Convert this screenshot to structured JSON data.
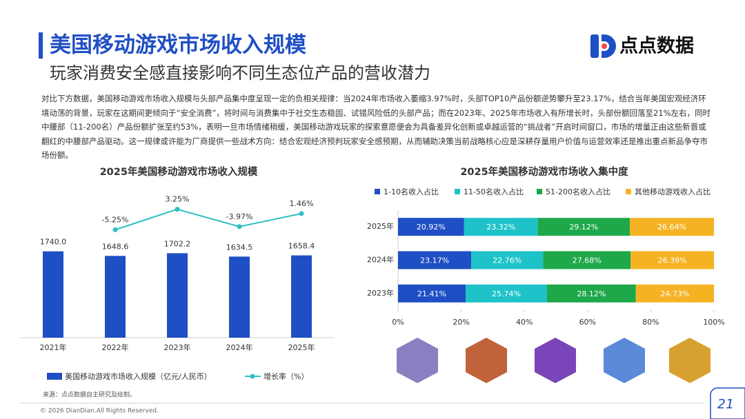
{
  "header": {
    "title": "美国移动游戏市场收入规模",
    "subtitle": "玩家消费安全感直接影响不同生态位产品的营收潜力",
    "logo": "点点数据"
  },
  "paragraph": "对比下方数据，美国移动游戏市场收入规模与头部产品集中度呈现一定的负相关规律：当2024年市场收入萎缩3.97%时，头部TOP10产品份额逆势攀升至23.17%，结合当年美国宏观经济环境动荡的背景，玩家在这期间更倾向于“安全消费”，将时间与消费集中于社交生态稳固、试错风险低的头部产品；而在2023年、2025年市场收入有所增长时，头部份额回落至21%左右，同时中腰部（11-200名）产品份额扩张至约53%，表明一旦市场情绪稍缓，美国移动游戏玩家的探索意愿便会为具备差异化创新或卓越运营的“挑战者”开启时间窗口，市场的增量正由这些新晋或翻红的中腰部产品驱动。这一规律或许能为厂商提供一些战术方向：结合宏观经济预判玩家安全感预期，从而辅助决策当前战略核心应是深耕存量用户价值与运营效率还是推出重点新品争夺市场份额。",
  "chart_data": [
    {
      "type": "bar-line",
      "title": "2025年美国移动游戏市场收入规模",
      "categories": [
        "2021年",
        "2022年",
        "2023年",
        "2024年",
        "2025年"
      ],
      "ylim": [
        0,
        2000
      ],
      "y2lim": [
        -20,
        10
      ],
      "series": [
        {
          "name": "美国移动游戏市场收入规模（亿元/人民币）",
          "color": "#1f4fc4",
          "values": [
            1740,
            1648.6,
            1702.2,
            1634.5,
            1658.4
          ],
          "value_labels": [
            "1740.0",
            "1648.6",
            "1702.2",
            "1634.5",
            "1658.4"
          ]
        },
        {
          "name": "增长率（%）",
          "color": "#2cc0c4",
          "axis": "y2",
          "values": [
            null,
            -5.25,
            3.25,
            -3.97,
            1.46
          ],
          "value_labels": [
            null,
            "-5.25%",
            "3.25%",
            "-3.97%",
            "1.46%"
          ]
        }
      ]
    },
    {
      "type": "stacked-hbar",
      "title": "2025年美国移动游戏市场收入集中度",
      "categories": [
        "2025年",
        "2024年",
        "2023年"
      ],
      "xlim": [
        0,
        100
      ],
      "xticks": [
        {
          "value": 0,
          "label": "0%"
        },
        {
          "value": 20,
          "label": "20%"
        },
        {
          "value": 40,
          "label": "40%"
        },
        {
          "value": 60,
          "label": "60%"
        },
        {
          "value": 80,
          "label": "80%"
        },
        {
          "value": 100,
          "label": "100%"
        }
      ],
      "series": [
        {
          "name": "1-10名收入占比",
          "color": "#1f4fc4",
          "values": [
            20.92,
            23.17,
            21.41
          ],
          "value_labels": [
            "20.92%",
            "23.17%",
            "21.41%"
          ]
        },
        {
          "name": "11-50名收入占比",
          "color": "#1ec3c9",
          "values": [
            23.32,
            22.76,
            25.74
          ],
          "value_labels": [
            "23.32%",
            "22.76%",
            "25.74%"
          ]
        },
        {
          "name": "51-200名收入占比",
          "color": "#1ea84a",
          "values": [
            29.12,
            27.68,
            28.12
          ],
          "value_labels": [
            "29.12%",
            "27.68%",
            "28.12%"
          ]
        },
        {
          "name": "其他移动游戏收入占比",
          "color": "#f5b324",
          "values": [
            26.64,
            26.39,
            24.73
          ],
          "value_labels": [
            "26.64%",
            "26.39%",
            "24.73%"
          ]
        }
      ]
    }
  ],
  "source": "来源：点点数据自主研究及绘制。",
  "footer": "© 2026 DianDian.All Rights Reserved.",
  "page_number": "21"
}
